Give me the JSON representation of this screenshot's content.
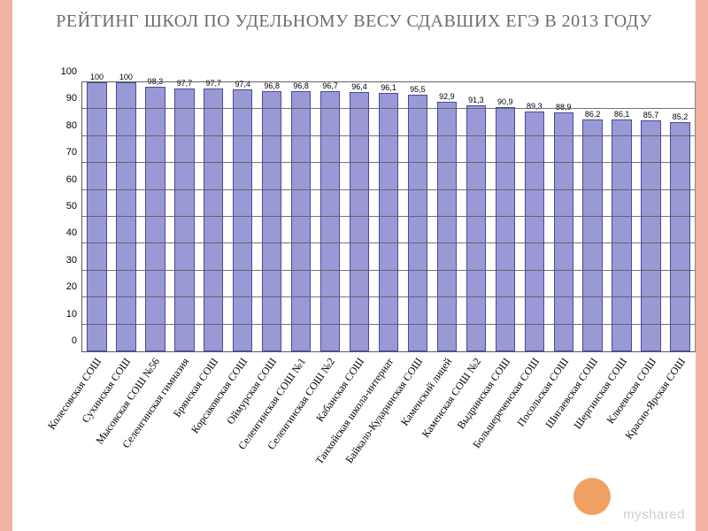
{
  "title": "РЕЙТИНГ ШКОЛ ПО УДЕЛЬНОМУ ВЕСУ СДАВШИХ ЕГЭ В 2013 ГОДУ",
  "watermark": "myshared",
  "accent_stripe_color": "#f2b3a3",
  "orange_dot_color": "#f0a060",
  "chart": {
    "type": "bar",
    "ylim": [
      0,
      100
    ],
    "ytick_step": 10,
    "bar_color": "#9999d6",
    "bar_border_color": "#4a4a9a",
    "grid_color": "#5a5a5a",
    "background_color": "#ffffff",
    "value_label_fontsize": 9,
    "axis_label_fontsize": 11,
    "category_label_fontsize": 12,
    "category_label_rotation_deg": -55,
    "bar_width_ratio": 0.68,
    "categories": [
      "Колесовская СОШ",
      "Сухинская СОШ",
      "Мысовская СОШ №56",
      "Селенгинская гимназия",
      "Брянская СОШ",
      "Корсаковская СОШ",
      "Оймурская СОШ",
      "Селенгинская СОШ №1",
      "Селенгинская СОШ №2",
      "Кабанская СОШ",
      "Танхойская школа-интернат",
      "Байкало-Кударинская СОШ",
      "Каменский лицей",
      "Каменская СОШ №2",
      "Выдринская СОШ",
      "Большереченская СОШ",
      "Посольская СОШ",
      "Шигаевская СОШ",
      "Шергинская СОШ",
      "Клюевская СОШ",
      "Красно-Ярская СОШ"
    ],
    "values": [
      100,
      100,
      98.3,
      97.7,
      97.7,
      97.4,
      96.8,
      96.8,
      96.7,
      96.4,
      96.1,
      95.5,
      92.9,
      91.3,
      90.9,
      89.3,
      88.9,
      86.2,
      86.1,
      85.7,
      85.2
    ],
    "value_labels": [
      "100",
      "100",
      "98,3",
      "97,7",
      "97,7",
      "97,4",
      "96,8",
      "96,8",
      "96,7",
      "96,4",
      "96,1",
      "95,5",
      "92,9",
      "91,3",
      "90,9",
      "89,3",
      "88,9",
      "86,2",
      "86,1",
      "85,7",
      "85,2"
    ]
  }
}
